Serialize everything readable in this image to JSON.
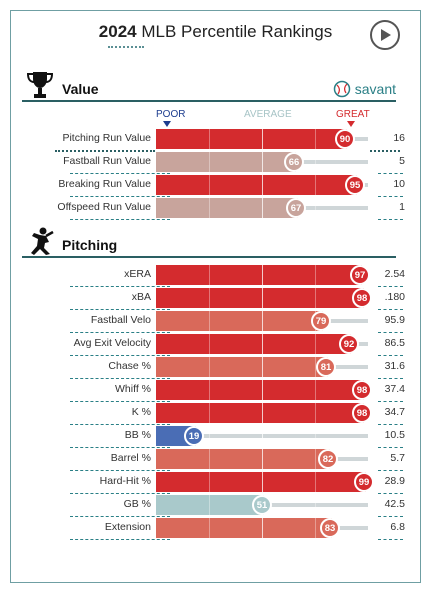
{
  "header": {
    "title_year": "2024",
    "title_rest": "MLB Percentile Rankings"
  },
  "value_section": {
    "title": "Value",
    "brand": "savant"
  },
  "scale": {
    "poor": "POOR",
    "average": "AVERAGE",
    "great": "GREAT"
  },
  "value_rows": [
    {
      "label": "Pitching Run Value",
      "pct": 90,
      "value": "16",
      "color": "#d42b2e"
    },
    {
      "label": "Fastball Run Value",
      "pct": 66,
      "value": "5",
      "color": "#c8a49c"
    },
    {
      "label": "Breaking Run Value",
      "pct": 95,
      "value": "10",
      "color": "#d42b2e"
    },
    {
      "label": "Offspeed Run Value",
      "pct": 67,
      "value": "1",
      "color": "#c8a49c"
    }
  ],
  "pitching_section": {
    "title": "Pitching"
  },
  "pitching_rows": [
    {
      "label": "xERA",
      "pct": 97,
      "value": "2.54",
      "color": "#d42b2e"
    },
    {
      "label": "xBA",
      "pct": 98,
      "value": ".180",
      "color": "#d42b2e"
    },
    {
      "label": "Fastball Velo",
      "pct": 79,
      "value": "95.9",
      "color": "#d9695a"
    },
    {
      "label": "Avg Exit Velocity",
      "pct": 92,
      "value": "86.5",
      "color": "#d42b2e"
    },
    {
      "label": "Chase %",
      "pct": 81,
      "value": "31.6",
      "color": "#d9695a"
    },
    {
      "label": "Whiff %",
      "pct": 98,
      "value": "37.4",
      "color": "#d42b2e"
    },
    {
      "label": "K %",
      "pct": 98,
      "value": "34.7",
      "color": "#d42b2e"
    },
    {
      "label": "BB %",
      "pct": 19,
      "value": "10.5",
      "color": "#4a6db5"
    },
    {
      "label": "Barrel %",
      "pct": 82,
      "value": "5.7",
      "color": "#d9695a"
    },
    {
      "label": "Hard-Hit %",
      "pct": 99,
      "value": "28.9",
      "color": "#d42b2e"
    },
    {
      "label": "GB %",
      "pct": 51,
      "value": "42.5",
      "color": "#a9c9cb"
    },
    {
      "label": "Extension",
      "pct": 83,
      "value": "6.8",
      "color": "#d9695a"
    }
  ]
}
